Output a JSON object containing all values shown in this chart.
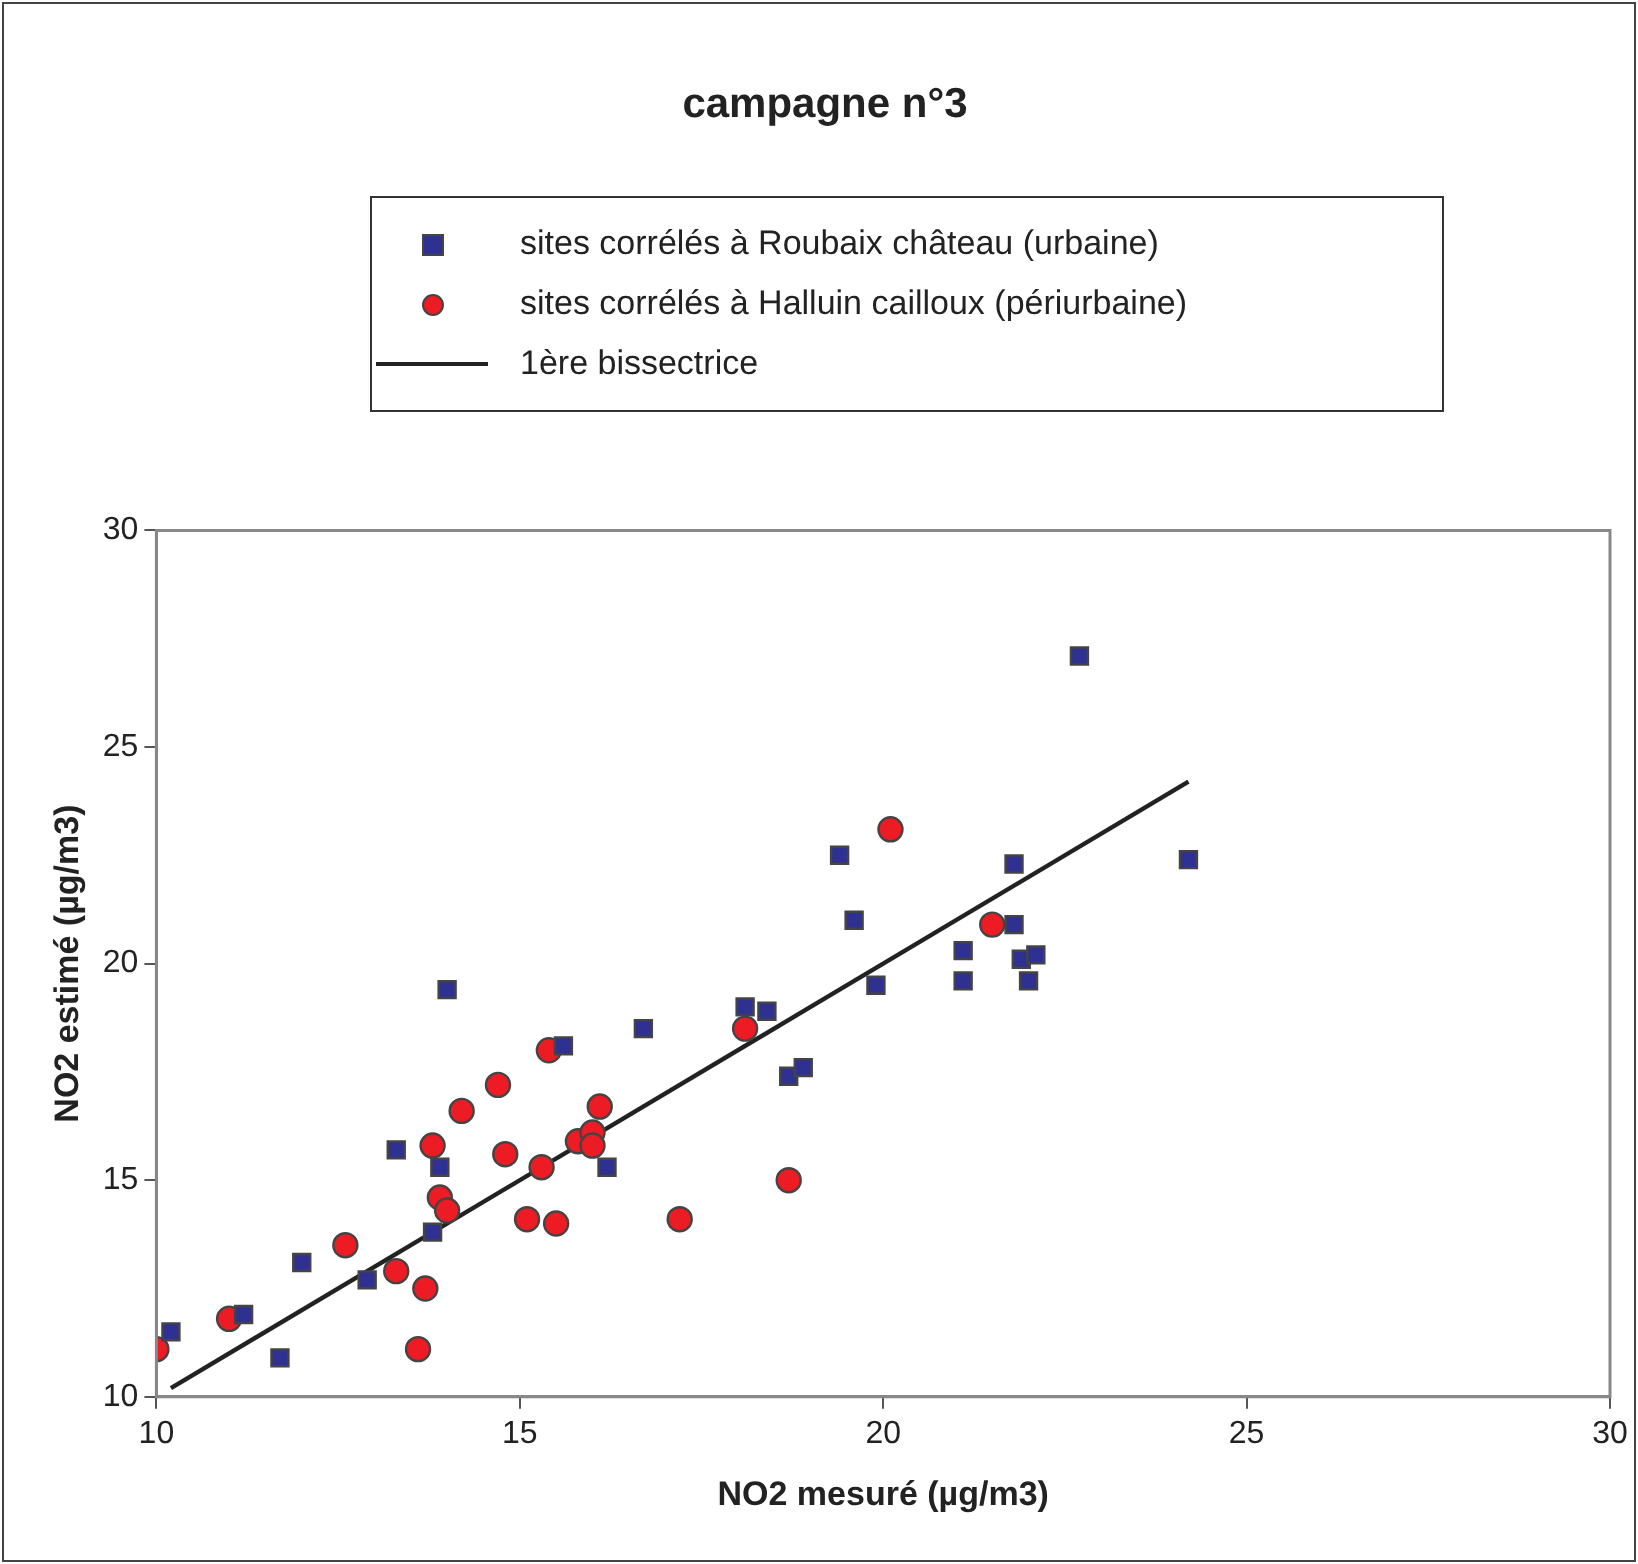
{
  "chart_data": {
    "type": "scatter",
    "title": "campagne n°3",
    "xlabel": "NO2 mesuré (µg/m3)",
    "ylabel": "NO2 estimé (µg/m3)",
    "xlim": [
      10,
      30
    ],
    "ylim": [
      10,
      30
    ],
    "xticks": [
      10,
      15,
      20,
      25,
      30
    ],
    "yticks": [
      10,
      15,
      20,
      25,
      30
    ],
    "grid": false,
    "legend": "top",
    "series": [
      {
        "name": "sites corrélés à Roubaix château (urbaine)",
        "color": "#2e3192",
        "marker": "square",
        "x": [
          10.2,
          11.2,
          11.7,
          12.0,
          12.9,
          13.3,
          14.0,
          13.9,
          13.8,
          15.6,
          16.2,
          16.7,
          19.4,
          19.6,
          19.9,
          18.1,
          18.4,
          18.7,
          18.9,
          21.1,
          21.1,
          21.8,
          21.8,
          21.9,
          22.1,
          22.0,
          24.2,
          22.7
        ],
        "values": [
          11.5,
          11.9,
          10.9,
          13.1,
          12.7,
          15.7,
          19.4,
          15.3,
          13.8,
          18.1,
          15.3,
          18.5,
          22.5,
          21.0,
          19.5,
          19.0,
          18.9,
          17.4,
          17.6,
          20.3,
          19.6,
          22.3,
          20.9,
          20.1,
          20.2,
          19.6,
          22.4,
          27.1
        ]
      },
      {
        "name": "sites corrélés à Halluin cailloux (périurbaine)",
        "color": "#ed1c24",
        "marker": "circle",
        "x": [
          10.0,
          11.0,
          12.6,
          13.3,
          13.7,
          13.6,
          13.8,
          13.9,
          14.0,
          14.2,
          14.7,
          14.8,
          15.1,
          15.3,
          15.4,
          15.5,
          15.8,
          16.0,
          16.0,
          16.1,
          17.2,
          20.1,
          21.5,
          18.1,
          18.7
        ],
        "values": [
          11.1,
          11.8,
          13.5,
          12.9,
          12.5,
          11.1,
          15.8,
          14.6,
          14.3,
          16.6,
          17.2,
          15.6,
          14.1,
          15.3,
          18.0,
          14.0,
          15.9,
          16.1,
          15.8,
          16.7,
          14.1,
          23.1,
          20.9,
          18.5,
          15.0
        ]
      },
      {
        "name": "1ère bissectrice",
        "type": "line",
        "color": "#222222",
        "marker": "none",
        "line_style": "solid",
        "x": [
          10.2,
          24.2
        ],
        "values": [
          10.2,
          24.2
        ]
      }
    ]
  }
}
